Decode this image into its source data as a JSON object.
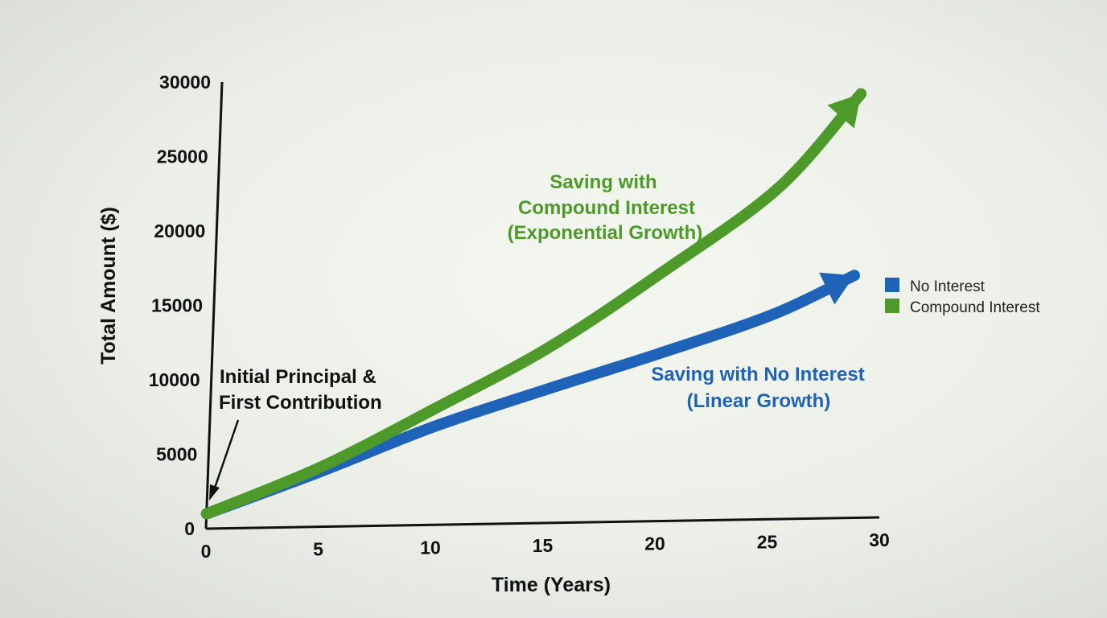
{
  "chart_data": {
    "type": "line",
    "title": "",
    "xlabel": "Time (Years)",
    "ylabel": "Total Amount ($)",
    "xlim": [
      0,
      30
    ],
    "ylim": [
      0,
      30000
    ],
    "x_ticks": [
      "0",
      "5",
      "10",
      "15",
      "20",
      "25",
      "30"
    ],
    "y_ticks": [
      "0",
      "5000",
      "10000",
      "15000",
      "20000",
      "25000",
      "30000"
    ],
    "grid": false,
    "legend_position": "right",
    "series": [
      {
        "name": "No Interest",
        "color": "#1f63b8",
        "x": [
          0,
          5,
          10,
          15,
          20,
          25,
          28.5
        ],
        "y": [
          1000,
          3700,
          6600,
          9000,
          11300,
          13800,
          16300
        ]
      },
      {
        "name": "Compound Interest",
        "color": "#4d9a2a",
        "x": [
          0,
          5,
          10,
          15,
          20,
          25,
          28.5
        ],
        "y": [
          1000,
          4000,
          7800,
          11800,
          16800,
          22300,
          28500
        ]
      }
    ],
    "annotations": [
      {
        "id": "compound",
        "lines": [
          "Saving with",
          "Compound Interest",
          "(Exponential Growth)"
        ],
        "color": "#4d9a2a"
      },
      {
        "id": "linear",
        "lines": [
          "Saving with No Interest",
          "(Linear Growth)"
        ],
        "color": "#1f63b8"
      },
      {
        "id": "principal",
        "lines": [
          "Initial Principal &",
          "First Contribution"
        ],
        "color": "#111111"
      }
    ]
  }
}
